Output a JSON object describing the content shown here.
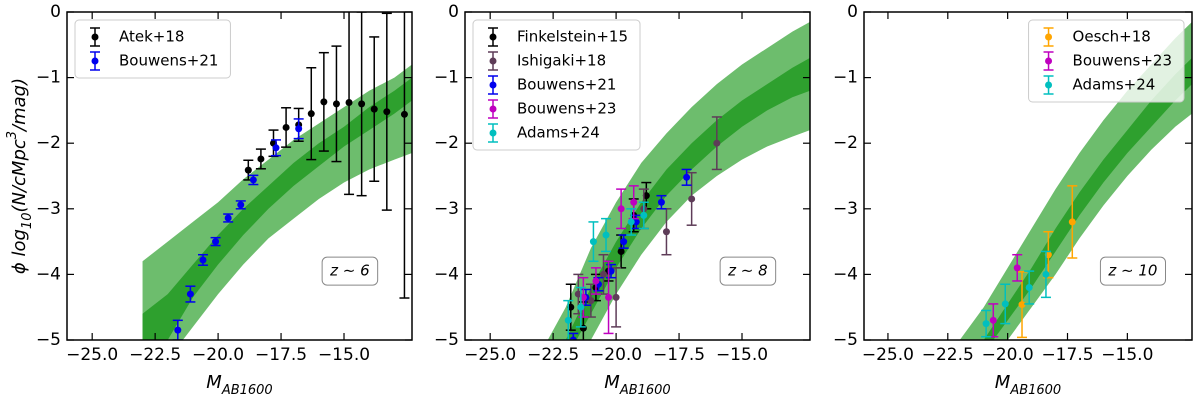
{
  "chart_data": [
    {
      "type": "errorbar",
      "xlabel": [
        "M",
        "AB1600"
      ],
      "ylabel": [
        "ϕ log",
        "10",
        "(N/cMpc",
        "3",
        "/mag)"
      ],
      "annotation": "z ∼ 6",
      "legend": "upper left",
      "xlim": [
        -26,
        -12.3
      ],
      "ylim": [
        -5,
        0
      ],
      "xticks": [
        {
          "value": -25,
          "label": "−25.0"
        },
        {
          "value": -22.5,
          "label": "−22.5"
        },
        {
          "value": -20,
          "label": "−20.0"
        },
        {
          "value": -17.5,
          "label": "−17.5"
        },
        {
          "value": -15,
          "label": "−15.0"
        }
      ],
      "yticks": [
        0,
        {
          "value": -1,
          "label": "−1"
        },
        {
          "value": -2,
          "label": "−2"
        },
        {
          "value": -3,
          "label": "−3"
        },
        {
          "value": -4,
          "label": "−4"
        },
        {
          "value": -5,
          "label": "−5"
        }
      ],
      "band_x": [
        -23,
        -22,
        -21,
        -20,
        -19,
        -18,
        -17,
        -16,
        -15,
        -14,
        -13,
        -12.3
      ],
      "bands": [
        {
          "color": "#6dbd6d",
          "upper": [
            -3.8,
            -3.5,
            -3.2,
            -2.9,
            -2.55,
            -2.25,
            -1.95,
            -1.7,
            -1.45,
            -1.2,
            -1.0,
            -0.8
          ],
          "lower": [
            -5.6,
            -5.3,
            -4.8,
            -4.3,
            -3.85,
            -3.45,
            -3.15,
            -2.85,
            -2.6,
            -2.4,
            -2.25,
            -2.15
          ]
        },
        {
          "color": "#2ea02e",
          "upper": [
            -4.6,
            -4.3,
            -3.85,
            -3.4,
            -3.0,
            -2.65,
            -2.3,
            -2.0,
            -1.75,
            -1.45,
            -1.2,
            -1.0
          ],
          "lower": [
            -5.3,
            -5.0,
            -4.35,
            -3.85,
            -3.4,
            -3.0,
            -2.65,
            -2.35,
            -2.05,
            -1.8,
            -1.55,
            -1.35
          ]
        }
      ],
      "series": [
        {
          "name": "Atek+18",
          "color": "#000000",
          "x": [
            -18.8,
            -18.3,
            -17.8,
            -17.3,
            -16.8,
            -16.3,
            -15.8,
            -15.3,
            -14.8,
            -14.3,
            -13.8,
            -13.3,
            -12.6
          ],
          "values": [
            -2.41,
            -2.24,
            -2.0,
            -1.76,
            -1.72,
            -1.55,
            -1.37,
            -1.4,
            -1.38,
            -1.4,
            -1.48,
            -1.52,
            -1.56
          ],
          "errors": [
            0.15,
            0.15,
            0.2,
            0.3,
            0.25,
            0.7,
            0.75,
            0.88,
            1.4,
            1.4,
            1.1,
            1.5,
            2.8
          ]
        },
        {
          "name": "Bouwens+21",
          "color": "#0000ee",
          "x": [
            -21.6,
            -21.1,
            -20.6,
            -20.1,
            -19.6,
            -19.1,
            -18.6,
            -17.7,
            -16.8
          ],
          "values": [
            -4.85,
            -4.3,
            -3.78,
            -3.5,
            -3.14,
            -2.94,
            -2.56,
            -2.07,
            -1.78
          ],
          "errors": [
            0.15,
            0.12,
            0.08,
            0.06,
            0.06,
            0.06,
            0.07,
            0.12,
            0.15
          ]
        }
      ]
    },
    {
      "type": "errorbar",
      "xlabel": [
        "M",
        "AB1600"
      ],
      "annotation": "z ∼ 8",
      "legend": "upper left",
      "xlim": [
        -26,
        -12.3
      ],
      "ylim": [
        -5,
        0
      ],
      "xticks": [
        {
          "value": -25,
          "label": "−25.0"
        },
        {
          "value": -22.5,
          "label": "−22.5"
        },
        {
          "value": -20,
          "label": "−20.0"
        },
        {
          "value": -17.5,
          "label": "−17.5"
        },
        {
          "value": -15,
          "label": "−15.0"
        }
      ],
      "yticks": [
        0,
        {
          "value": -1,
          "label": "−1"
        },
        {
          "value": -2,
          "label": "−2"
        },
        {
          "value": -3,
          "label": "−3"
        },
        {
          "value": -4,
          "label": "−4"
        },
        {
          "value": -5,
          "label": "−5"
        }
      ],
      "band_x": [
        -23,
        -22,
        -21,
        -20,
        -19,
        -18,
        -17,
        -16,
        -15,
        -14,
        -13,
        -12.3
      ],
      "bands": [
        {
          "color": "#6dbd6d",
          "upper": [
            -5.2,
            -4.5,
            -3.6,
            -2.9,
            -2.3,
            -1.85,
            -1.45,
            -1.1,
            -0.8,
            -0.55,
            -0.3,
            -0.15
          ],
          "lower": [
            -6,
            -5.6,
            -5.0,
            -4.3,
            -3.7,
            -3.2,
            -2.8,
            -2.5,
            -2.25,
            -2.05,
            -1.9,
            -1.8
          ]
        },
        {
          "color": "#2ea02e",
          "upper": [
            -5.6,
            -5.0,
            -4.2,
            -3.5,
            -2.9,
            -2.4,
            -2.0,
            -1.65,
            -1.35,
            -1.1,
            -0.85,
            -0.7
          ],
          "lower": [
            -5.9,
            -5.3,
            -4.6,
            -3.9,
            -3.3,
            -2.8,
            -2.4,
            -2.05,
            -1.75,
            -1.5,
            -1.3,
            -1.2
          ]
        }
      ],
      "series": [
        {
          "name": "Finkelstein+15",
          "color": "#000000",
          "x": [
            -21.8,
            -21.3,
            -20.8,
            -20.3,
            -19.8,
            -19.3,
            -18.8
          ],
          "values": [
            -4.5,
            -4.82,
            -4.2,
            -3.95,
            -3.65,
            -3.1,
            -2.8
          ],
          "errors": [
            0.35,
            0.4,
            0.2,
            0.15,
            0.25,
            0.25,
            0.2
          ]
        },
        {
          "name": "Ishigaki+18",
          "color": "#5e3c58",
          "x": [
            -21.5,
            -21.0,
            -20.5,
            -20.0,
            -18.9,
            -18.0,
            -17.0,
            -16.0
          ],
          "values": [
            -4.3,
            -4.4,
            -4.0,
            -4.35,
            -3.0,
            -3.35,
            -2.85,
            -2.0
          ],
          "errors": [
            0.3,
            0.25,
            0.3,
            0.45,
            0.3,
            0.35,
            0.4,
            0.4
          ]
        },
        {
          "name": "Bouwens+21",
          "color": "#0000ee",
          "x": [
            -21.7,
            -21.2,
            -20.7,
            -20.2,
            -19.7,
            -19.2,
            -18.2,
            -17.2
          ],
          "values": [
            -5.0,
            -4.35,
            -4.15,
            -3.95,
            -3.5,
            -3.2,
            -2.9,
            -2.52
          ],
          "errors": [
            0.1,
            0.12,
            0.1,
            0.1,
            0.1,
            0.1,
            0.1,
            0.12
          ]
        },
        {
          "name": "Bouwens+23",
          "color": "#bf00bf",
          "x": [
            -21.3,
            -20.8,
            -20.3,
            -19.8,
            -19.3
          ],
          "values": [
            -4.35,
            -4.1,
            -4.35,
            -3.0,
            -2.9
          ],
          "errors": [
            0.3,
            0.2,
            0.55,
            0.3,
            0.25
          ]
        },
        {
          "name": "Adams+24",
          "color": "#00bfbf",
          "x": [
            -21.9,
            -21.4,
            -20.9,
            -20.4,
            -19.4,
            -18.9
          ],
          "values": [
            -4.7,
            -4.5,
            -3.5,
            -3.4,
            -3.2,
            -3.1
          ],
          "errors": [
            0.3,
            0.3,
            0.3,
            0.25,
            0.2,
            0.2
          ]
        }
      ]
    },
    {
      "type": "errorbar",
      "xlabel": [
        "M",
        "AB1600"
      ],
      "annotation": "z ∼ 10",
      "legend": "upper right",
      "xlim": [
        -26,
        -12.3
      ],
      "ylim": [
        -5,
        0
      ],
      "xticks": [
        {
          "value": -25,
          "label": "−25.0"
        },
        {
          "value": -22.5,
          "label": "−22.5"
        },
        {
          "value": -20,
          "label": "−20.0"
        },
        {
          "value": -17.5,
          "label": "−17.5"
        },
        {
          "value": -15,
          "label": "−15.0"
        }
      ],
      "yticks": [
        0,
        {
          "value": -1,
          "label": "−1"
        },
        {
          "value": -2,
          "label": "−2"
        },
        {
          "value": -3,
          "label": "−3"
        },
        {
          "value": -4,
          "label": "−4"
        },
        {
          "value": -5,
          "label": "−5"
        }
      ],
      "band_x": [
        -22,
        -21,
        -20,
        -19,
        -18,
        -17,
        -16,
        -15,
        -14,
        -13,
        -12.3
      ],
      "bands": [
        {
          "color": "#6dbd6d",
          "upper": [
            -5.0,
            -4.5,
            -3.9,
            -3.3,
            -2.7,
            -2.15,
            -1.65,
            -1.2,
            -0.8,
            -0.4,
            -0.15
          ],
          "lower": [
            -5.8,
            -5.4,
            -5.0,
            -4.5,
            -4.0,
            -3.45,
            -2.95,
            -2.5,
            -2.1,
            -1.75,
            -1.55
          ]
        },
        {
          "color": "#2ea02e",
          "upper": [
            -5.4,
            -5.0,
            -4.45,
            -3.9,
            -3.3,
            -2.75,
            -2.25,
            -1.8,
            -1.35,
            -0.95,
            -0.7
          ],
          "lower": [
            -5.6,
            -5.2,
            -4.7,
            -4.2,
            -3.65,
            -3.1,
            -2.6,
            -2.15,
            -1.75,
            -1.35,
            -1.1
          ]
        }
      ],
      "series": [
        {
          "name": "Oesch+18",
          "color": "#ffa500",
          "x": [
            -19.4,
            -18.3,
            -17.3
          ],
          "values": [
            -4.46,
            -3.7,
            -3.2
          ],
          "errors": [
            0.5,
            0.35,
            0.55
          ]
        },
        {
          "name": "Bouwens+23",
          "color": "#bf00bf",
          "x": [
            -20.6,
            -19.6
          ],
          "values": [
            -4.7,
            -3.9
          ],
          "errors": [
            0.25,
            0.2
          ]
        },
        {
          "name": "Adams+24",
          "color": "#00bfbf",
          "x": [
            -20.9,
            -20.1,
            -19.1,
            -18.4
          ],
          "values": [
            -4.75,
            -4.45,
            -4.2,
            -4.0
          ],
          "errors": [
            0.2,
            0.3,
            0.25,
            0.35
          ]
        }
      ]
    }
  ]
}
